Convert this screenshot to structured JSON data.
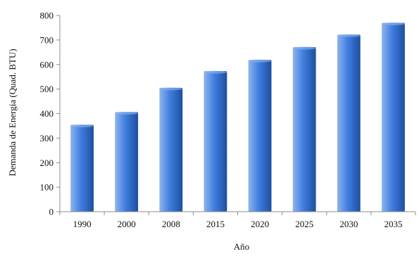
{
  "chart_data": {
    "type": "bar",
    "categories": [
      "1990",
      "2000",
      "2008",
      "2015",
      "2020",
      "2025",
      "2030",
      "2035"
    ],
    "values": [
      354,
      406,
      505,
      573,
      619,
      671,
      722,
      770
    ],
    "title": "",
    "xlabel": "Año",
    "ylabel": "Demanda de Energía (Quad. BTU)",
    "ylim": [
      0,
      800
    ],
    "yticks": [
      "0",
      "100",
      "200",
      "300",
      "400",
      "500",
      "600",
      "700",
      "800"
    ],
    "grid": false,
    "legend": "none",
    "colors": {
      "bar_light": "#8fb4ee",
      "bar_mid": "#3f7ee0",
      "bar_dark": "#1d4f9f",
      "axis": "#8c8c8c"
    }
  }
}
